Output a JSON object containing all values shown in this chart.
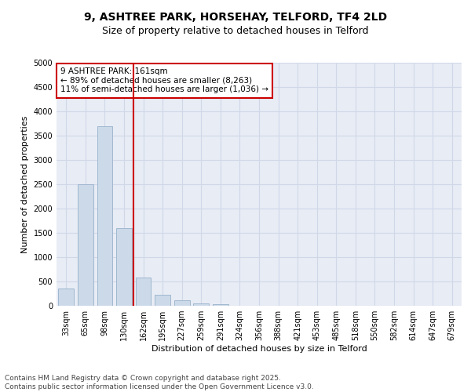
{
  "title_line1": "9, ASHTREE PARK, HORSEHAY, TELFORD, TF4 2LD",
  "title_line2": "Size of property relative to detached houses in Telford",
  "xlabel": "Distribution of detached houses by size in Telford",
  "ylabel": "Number of detached properties",
  "categories": [
    "33sqm",
    "65sqm",
    "98sqm",
    "130sqm",
    "162sqm",
    "195sqm",
    "227sqm",
    "259sqm",
    "291sqm",
    "324sqm",
    "356sqm",
    "388sqm",
    "421sqm",
    "453sqm",
    "485sqm",
    "518sqm",
    "550sqm",
    "582sqm",
    "614sqm",
    "647sqm",
    "679sqm"
  ],
  "values": [
    350,
    2500,
    3700,
    1600,
    580,
    220,
    120,
    50,
    30,
    5,
    2,
    0,
    0,
    0,
    0,
    0,
    0,
    0,
    0,
    0,
    0
  ],
  "bar_color": "#ccd9e8",
  "bar_edgecolor": "#a0b8d0",
  "grid_color": "#d0d8e8",
  "background_color": "#e8ecf5",
  "red_line_index": 4,
  "annotation_text": "9 ASHTREE PARK: 161sqm\n← 89% of detached houses are smaller (8,263)\n11% of semi-detached houses are larger (1,036) →",
  "annotation_box_color": "#ffffff",
  "annotation_box_edgecolor": "#cc0000",
  "ylim": [
    0,
    5000
  ],
  "yticks": [
    0,
    500,
    1000,
    1500,
    2000,
    2500,
    3000,
    3500,
    4000,
    4500,
    5000
  ],
  "footnote_line1": "Contains HM Land Registry data © Crown copyright and database right 2025.",
  "footnote_line2": "Contains public sector information licensed under the Open Government Licence v3.0.",
  "title_fontsize": 10,
  "subtitle_fontsize": 9,
  "axis_label_fontsize": 8,
  "tick_fontsize": 7,
  "annotation_fontsize": 7.5,
  "footnote_fontsize": 6.5
}
